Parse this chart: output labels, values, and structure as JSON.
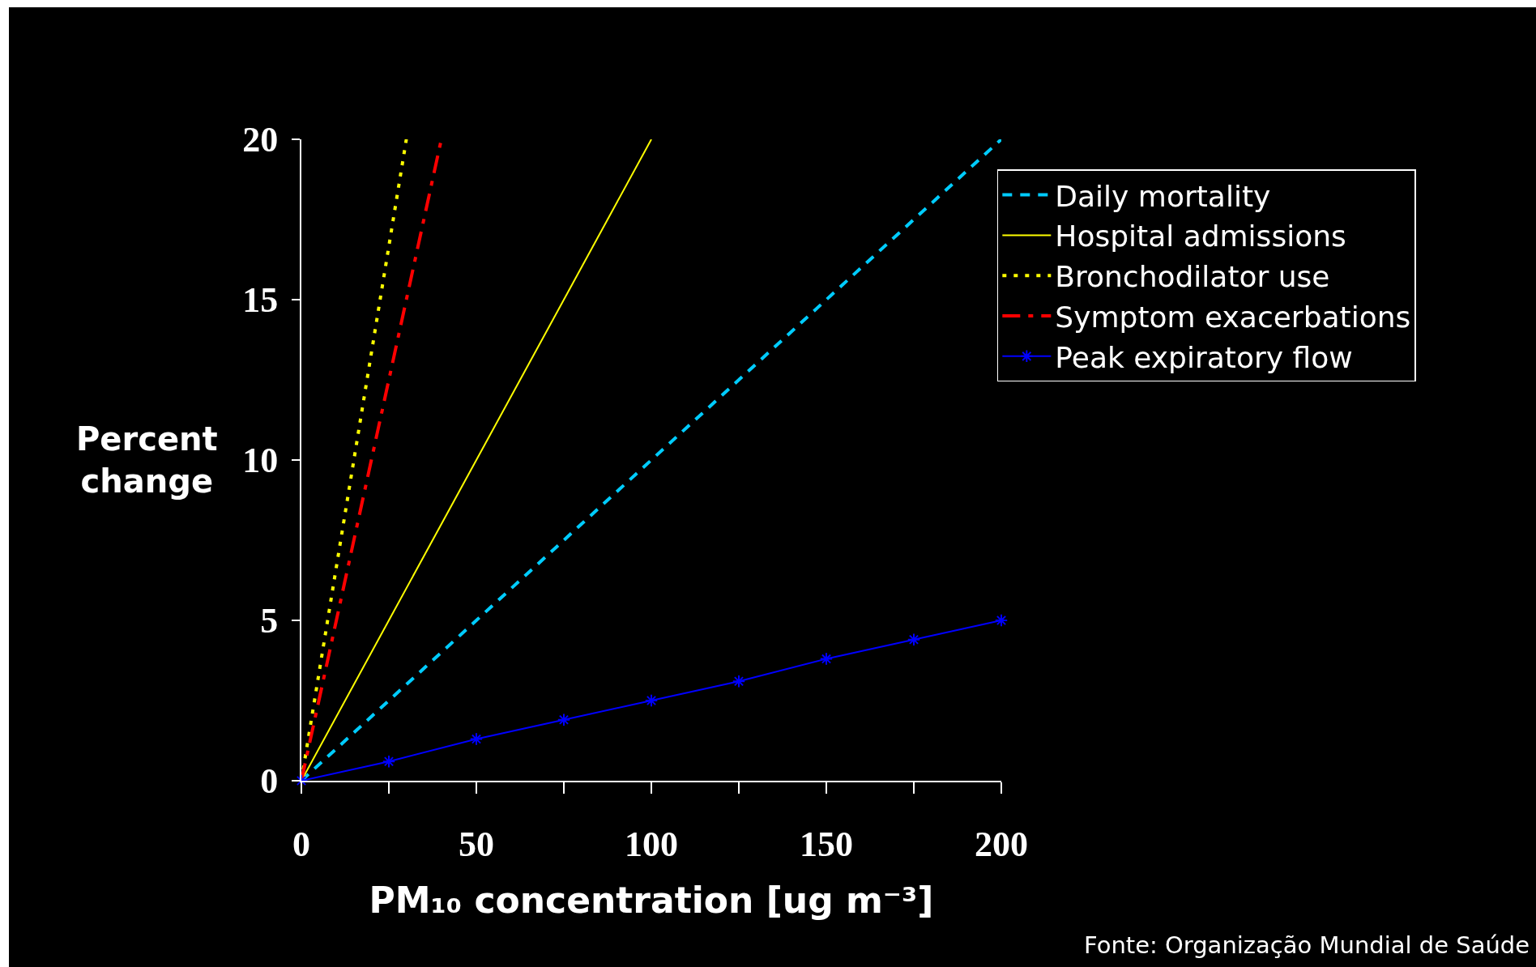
{
  "chart_data": {
    "type": "line",
    "xlabel": "PM₁₀ concentration [ug m⁻³]",
    "ylabel": "Percent change",
    "xlim": [
      0,
      200
    ],
    "ylim": [
      0,
      20
    ],
    "xticks": [
      0,
      {
        "value": 25,
        "label": null
      },
      50,
      {
        "value": 75,
        "label": null
      },
      100,
      {
        "value": 125,
        "label": null
      },
      150,
      {
        "value": 175,
        "label": null
      },
      200
    ],
    "yticks": [
      0,
      5,
      10,
      15,
      20
    ],
    "grid": false,
    "legend": "right",
    "series": [
      {
        "name": "Daily mortality",
        "color": "#00ccff",
        "line_style": "dashed",
        "marker": "none",
        "x": [
          0,
          25,
          50,
          100,
          150,
          200
        ],
        "values": [
          0,
          2.5,
          5,
          10,
          15,
          20
        ]
      },
      {
        "name": "Hospital admissions",
        "color": "#ffff00",
        "line_style": "solid",
        "marker": "none",
        "x": [
          0,
          100
        ],
        "values": [
          0,
          20
        ]
      },
      {
        "name": "Bronchodilator use",
        "color": "#ffff00",
        "line_style": "dotted",
        "marker": "none",
        "x": [
          0,
          7.5,
          15,
          22.5,
          30
        ],
        "values": [
          0,
          5,
          10,
          15,
          20
        ]
      },
      {
        "name": "Symptom exacerbations",
        "color": "#ff0000",
        "line_style": "dashdot",
        "marker": "none",
        "x": [
          0,
          10,
          20,
          30,
          40
        ],
        "values": [
          0,
          5,
          10,
          15,
          20
        ]
      },
      {
        "name": "Peak expiratory flow",
        "color": "#0000ff",
        "line_style": "solid",
        "marker": "cross",
        "x": [
          0,
          25,
          50,
          75,
          100,
          125,
          150,
          175,
          200
        ],
        "values": [
          0,
          0.6,
          1.3,
          1.9,
          2.5,
          3.1,
          3.8,
          4.4,
          5
        ]
      }
    ],
    "annotations": [
      "Fonte: Organização Mundial de Saúde"
    ]
  }
}
